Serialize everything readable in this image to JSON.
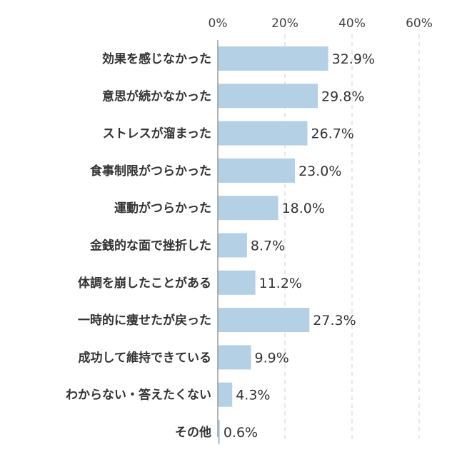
{
  "chart_data": {
    "type": "bar",
    "orientation": "horizontal",
    "categories": [
      "効果を感じなかった",
      "意思が続かなかった",
      "ストレスが溜まった",
      "食事制限がつらかった",
      "運動がつらかった",
      "金銭的な面で挫折した",
      "体調を崩したことがある",
      "一時的に痩せたが戻った",
      "成功して維持できている",
      "わからない・答えたくない",
      "その他"
    ],
    "values": [
      32.9,
      29.8,
      26.7,
      23.0,
      18.0,
      8.7,
      11.2,
      27.3,
      9.9,
      4.3,
      0.6
    ],
    "value_labels": [
      "32.9%",
      "29.8%",
      "26.7%",
      "23.0%",
      "18.0%",
      "8.7%",
      "11.2%",
      "27.3%",
      "9.9%",
      "4.3%",
      "0.6%"
    ],
    "xlim": [
      0,
      70
    ],
    "ticks": [
      0,
      20,
      40,
      60
    ],
    "tick_labels": [
      "0%",
      "20%",
      "40%",
      "60%"
    ],
    "grid": true,
    "bar_color": "#b4d0e5",
    "grid_color": "#d8d8d8",
    "axis_color": "#999999"
  }
}
